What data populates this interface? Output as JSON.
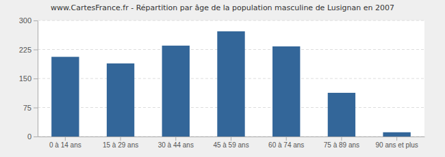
{
  "chart_data": {
    "type": "bar",
    "title": "www.CartesFrance.fr - Répartition par âge de la population masculine de Lusignan en 2007",
    "categories": [
      "0 à 14 ans",
      "15 à 29 ans",
      "30 à 44 ans",
      "45 à 59 ans",
      "60 à 74 ans",
      "75 à 89 ans",
      "90 ans et plus"
    ],
    "values": [
      206,
      189,
      235,
      272,
      233,
      113,
      11
    ],
    "color": "#336699",
    "ylim": [
      0,
      300
    ],
    "yticks": [
      0,
      75,
      150,
      225,
      300
    ],
    "grid": true
  }
}
